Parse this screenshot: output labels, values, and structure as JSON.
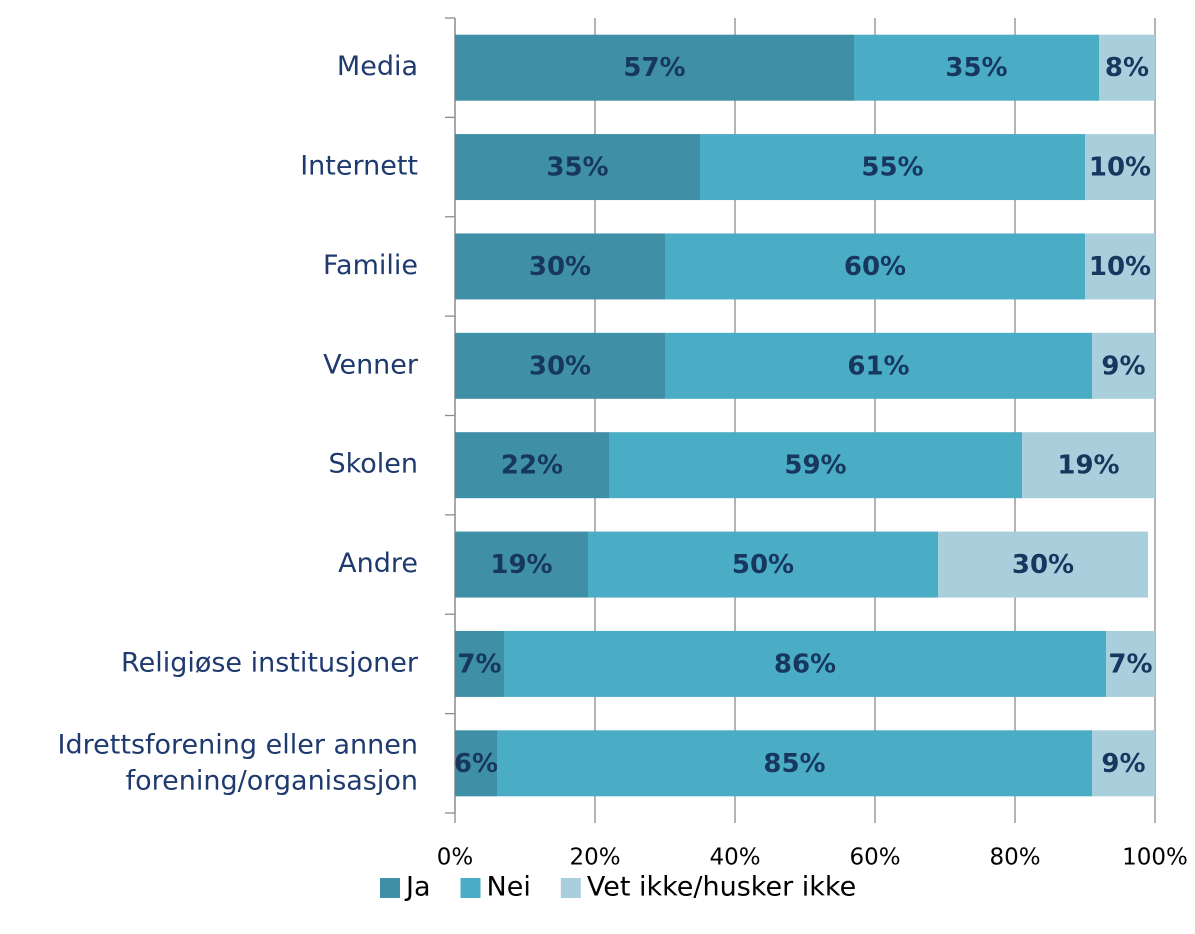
{
  "chart_data": {
    "type": "stacked_barh",
    "categories": [
      "Media",
      "Internett",
      "Familie",
      "Venner",
      "Skolen",
      "Andre",
      "Religiøse institusjoner",
      "Idrettsforening eller annen\nforening/organisasjon"
    ],
    "series": [
      {
        "name": "Ja",
        "color": "#3f8fa6",
        "values": [
          57,
          35,
          30,
          30,
          22,
          19,
          7,
          6
        ],
        "value_labels": [
          "57%",
          "35%",
          "30%",
          "30%",
          "22%",
          "19%",
          "7%",
          "6%"
        ]
      },
      {
        "name": "Nei",
        "color": "#4bacc6",
        "values": [
          35,
          55,
          60,
          61,
          59,
          50,
          86,
          85
        ],
        "value_labels": [
          "35%",
          "55%",
          "60%",
          "61%",
          "59%",
          "50%",
          "86%",
          "85%"
        ]
      },
      {
        "name": "Vet ikke/husker ikke",
        "color": "#a9cfdc",
        "values": [
          8,
          10,
          10,
          9,
          19,
          30,
          7,
          9
        ],
        "value_labels": [
          "8%",
          "10%",
          "10%",
          "9%",
          "19%",
          "30%",
          "7%",
          "9%"
        ]
      }
    ],
    "xlim": [
      0,
      100
    ],
    "xticks": [
      {
        "value": 0,
        "label": "0%"
      },
      {
        "value": 20,
        "label": "20%"
      },
      {
        "value": 40,
        "label": "40%"
      },
      {
        "value": 60,
        "label": "60%"
      },
      {
        "value": 80,
        "label": "80%"
      },
      {
        "value": 100,
        "label": "100%"
      }
    ],
    "grid": true,
    "legend": "bottom"
  }
}
